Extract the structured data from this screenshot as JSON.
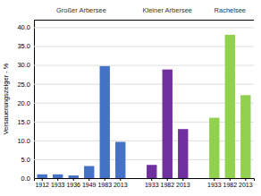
{
  "chart_data": {
    "type": "bar",
    "ylabel": "Versauerungszeiger - %",
    "series": [
      {
        "name": "Großer Arbersee",
        "color": "#4472C4",
        "categories": [
          "1912",
          "1933",
          "1936",
          "1949",
          "1983",
          "2013"
        ],
        "values": [
          1.0,
          1.0,
          0.7,
          3.2,
          29.7,
          9.6
        ]
      },
      {
        "name": "Kleiner Arbersee",
        "color": "#7030A0",
        "categories": [
          "1933",
          "1982",
          "2013"
        ],
        "values": [
          3.5,
          28.8,
          13.0
        ]
      },
      {
        "name": "Rachelsee",
        "color": "#92D050",
        "categories": [
          "1933",
          "1982",
          "2013"
        ],
        "values": [
          16.0,
          38.0,
          22.0
        ]
      }
    ],
    "ylim": [
      0,
      42
    ],
    "yticks": [
      {
        "value": 0.0,
        "label": "0.0"
      },
      {
        "value": 5.0,
        "label": "5.0"
      },
      {
        "value": 10.0,
        "label": "10.0"
      },
      {
        "value": 15.0,
        "label": "15.0"
      },
      {
        "value": 20.0,
        "label": "20.0"
      },
      {
        "value": 25.0,
        "label": "25.0"
      },
      {
        "value": 30.0,
        "label": "30.0"
      },
      {
        "value": 35.0,
        "label": "35.0"
      },
      {
        "value": 40.0,
        "label": "40.0"
      }
    ],
    "grid": true
  }
}
